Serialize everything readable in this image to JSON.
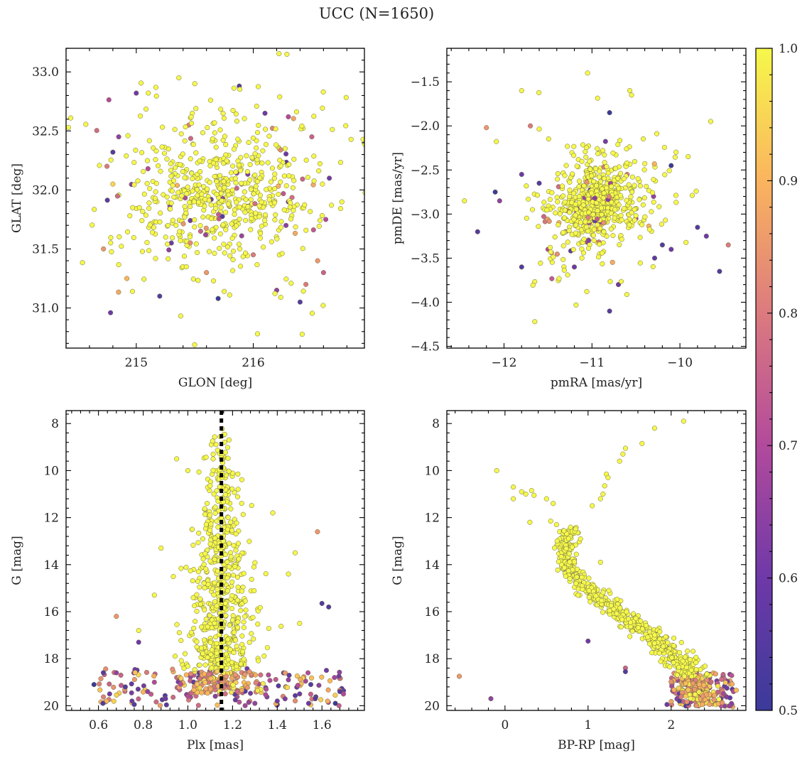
{
  "title": "UCC (N=1650)",
  "colorbar": {
    "range": [
      0.5,
      1.0
    ],
    "ticks": [
      "0.5",
      "0.6",
      "0.7",
      "0.8",
      "0.9",
      "1.0"
    ],
    "colormap": "plasma"
  },
  "chart_data": [
    {
      "type": "scatter",
      "xlabel": "GLON [deg]",
      "ylabel": "GLAT [deg]",
      "xlim": [
        214.4,
        216.95
      ],
      "ylim": [
        30.66,
        33.2
      ],
      "xticks": [
        215,
        216
      ],
      "yticks": [
        31.0,
        31.5,
        32.0,
        32.5,
        33.0
      ],
      "ytick_labels": [
        "31.0",
        "31.5",
        "32.0",
        "32.5",
        "33.0"
      ],
      "cluster": {
        "cx": 215.7,
        "cy": 31.95,
        "sx": 0.35,
        "sy": 0.28,
        "n": 650
      },
      "field_stars": [
        [
          214.78,
          30.96,
          0.6
        ],
        [
          215.2,
          31.1,
          0.55
        ],
        [
          215.7,
          31.08,
          0.5
        ],
        [
          216.4,
          31.05,
          0.55
        ],
        [
          216.6,
          31.3,
          0.75
        ],
        [
          216.55,
          31.4,
          0.85
        ],
        [
          216.45,
          31.2,
          0.8
        ],
        [
          215.0,
          32.82,
          0.6
        ],
        [
          214.8,
          32.32,
          0.55
        ],
        [
          214.85,
          32.45,
          0.65
        ],
        [
          215.88,
          32.88,
          0.55
        ],
        [
          216.1,
          32.65,
          0.6
        ],
        [
          216.5,
          32.45,
          0.75
        ],
        [
          216.3,
          32.62,
          0.7
        ],
        [
          214.75,
          32.2,
          0.8
        ],
        [
          214.72,
          31.5,
          0.85
        ],
        [
          216.65,
          32.1,
          0.6
        ],
        [
          216.62,
          31.75,
          0.7
        ],
        [
          215.55,
          31.65,
          0.75
        ],
        [
          215.3,
          31.55,
          0.6
        ],
        [
          216.0,
          31.45,
          0.8
        ],
        [
          216.2,
          31.15,
          0.65
        ],
        [
          215.1,
          32.18,
          0.7
        ],
        [
          215.45,
          32.55,
          0.8
        ],
        [
          215.9,
          32.05,
          0.75
        ],
        [
          216.3,
          31.9,
          0.6
        ],
        [
          214.92,
          31.25,
          0.9
        ],
        [
          215.5,
          32.9,
          1.0
        ],
        [
          214.8,
          32.05,
          0.95
        ],
        [
          215.6,
          31.3,
          0.85
        ]
      ]
    },
    {
      "type": "scatter",
      "xlabel": "pmRA [mas/yr]",
      "ylabel": "pmDE [mas/yr]",
      "xlim": [
        -12.65,
        -9.25
      ],
      "ylim": [
        -4.52,
        -1.12
      ],
      "xticks": [
        -12,
        -11,
        -10
      ],
      "xtick_labels": [
        "−12",
        "−11",
        "−10"
      ],
      "yticks": [
        -4.5,
        -4.0,
        -3.5,
        -3.0,
        -2.5,
        -2.0,
        -1.5
      ],
      "ytick_labels": [
        "−4.5",
        "−4.0",
        "−3.5",
        "−3.0",
        "−2.5",
        "−2.0",
        "−1.5"
      ],
      "cluster": {
        "cx": -10.95,
        "cy": -2.88,
        "sx": 0.22,
        "sy": 0.22,
        "n": 650
      },
      "field_stars": [
        [
          -12.3,
          -3.2,
          0.55
        ],
        [
          -12.1,
          -2.75,
          0.5
        ],
        [
          -11.8,
          -3.6,
          0.55
        ],
        [
          -10.8,
          -1.85,
          0.5
        ],
        [
          -10.1,
          -2.45,
          0.5
        ],
        [
          -9.8,
          -3.15,
          0.55
        ],
        [
          -9.7,
          -3.25,
          0.6
        ],
        [
          -9.55,
          -3.65,
          0.55
        ],
        [
          -9.45,
          -3.35,
          0.8
        ],
        [
          -10.2,
          -3.35,
          0.55
        ],
        [
          -10.1,
          -3.4,
          0.6
        ],
        [
          -10.7,
          -3.8,
          0.6
        ],
        [
          -10.8,
          -4.1,
          0.55
        ],
        [
          -11.2,
          -3.6,
          0.6
        ],
        [
          -11.5,
          -3.4,
          0.7
        ],
        [
          -11.7,
          -2.0,
          0.8
        ],
        [
          -12.2,
          -2.02,
          0.85
        ],
        [
          -11.8,
          -2.55,
          0.6
        ],
        [
          -11.6,
          -2.65,
          0.55
        ],
        [
          -10.3,
          -2.8,
          0.65
        ],
        [
          -10.5,
          -3.05,
          0.7
        ],
        [
          -11.3,
          -3.2,
          0.75
        ],
        [
          -10.6,
          -2.55,
          0.8
        ],
        [
          -12.05,
          -2.85,
          0.65
        ],
        [
          -11.05,
          -1.4,
          1.0
        ],
        [
          -11.8,
          -1.6,
          1.0
        ],
        [
          -12.45,
          -2.85,
          1.0
        ],
        [
          -11.65,
          -4.22,
          1.0
        ],
        [
          -10.55,
          -1.65,
          1.0
        ],
        [
          -9.65,
          -1.95,
          1.0
        ]
      ]
    },
    {
      "type": "scatter",
      "xlabel": "Plx [mas]",
      "ylabel": "G [mag]",
      "xlim": [
        0.455,
        1.79
      ],
      "ylim": [
        20.2,
        7.45
      ],
      "xticks": [
        0.6,
        0.8,
        1.0,
        1.2,
        1.4,
        1.6
      ],
      "xtick_labels": [
        "0.6",
        "0.8",
        "1.0",
        "1.2",
        "1.4",
        "1.6"
      ],
      "yticks": [
        8,
        10,
        12,
        14,
        16,
        18,
        20
      ],
      "vline": 1.15,
      "cluster": {
        "cx": 1.15,
        "sx": 0.055,
        "n": 720
      },
      "field_stars": [
        [
          0.58,
          19.1,
          0.5
        ],
        [
          0.62,
          19.9,
          0.55
        ],
        [
          0.65,
          19.5,
          0.6
        ],
        [
          0.68,
          18.6,
          0.65
        ],
        [
          0.72,
          19.2,
          0.55
        ],
        [
          0.75,
          19.8,
          0.6
        ],
        [
          0.78,
          17.3,
          0.6
        ],
        [
          0.82,
          19.4,
          0.65
        ],
        [
          0.85,
          19.0,
          0.7
        ],
        [
          0.9,
          19.7,
          0.6
        ],
        [
          0.95,
          18.8,
          0.75
        ],
        [
          1.0,
          19.6,
          0.7
        ],
        [
          1.35,
          19.3,
          0.7
        ],
        [
          1.4,
          19.8,
          0.6
        ],
        [
          1.45,
          18.9,
          0.65
        ],
        [
          1.5,
          19.5,
          0.6
        ],
        [
          1.55,
          19.1,
          0.55
        ],
        [
          1.6,
          15.65,
          0.55
        ],
        [
          1.63,
          15.8,
          0.55
        ],
        [
          1.66,
          19.9,
          0.5
        ],
        [
          1.68,
          19.4,
          0.55
        ],
        [
          1.58,
          12.6,
          0.85
        ],
        [
          0.68,
          16.2,
          0.85
        ],
        [
          1.62,
          18.5,
          0.6
        ],
        [
          0.76,
          19.95,
          0.55
        ],
        [
          1.57,
          19.7,
          0.55
        ],
        [
          0.7,
          18.7,
          0.75
        ],
        [
          1.3,
          19.9,
          0.65
        ]
      ]
    },
    {
      "type": "scatter",
      "xlabel": "BP-RP [mag]",
      "ylabel": "G [mag]",
      "xlim": [
        -0.7,
        2.9
      ],
      "ylim": [
        20.2,
        7.45
      ],
      "xticks": [
        0,
        1,
        2
      ],
      "yticks": [
        8,
        10,
        12,
        14,
        16,
        18,
        20
      ],
      "sequence": [
        [
          0.95,
          11.8
        ],
        [
          0.78,
          12.6
        ],
        [
          0.72,
          13.2
        ],
        [
          0.74,
          13.8
        ],
        [
          0.85,
          14.5
        ],
        [
          1.05,
          15.2
        ],
        [
          1.3,
          15.9
        ],
        [
          1.55,
          16.5
        ],
        [
          1.8,
          17.2
        ],
        [
          2.05,
          17.9
        ],
        [
          2.2,
          18.6
        ],
        [
          2.3,
          19.3
        ],
        [
          2.4,
          19.9
        ]
      ],
      "giants": [
        [
          2.15,
          7.9
        ],
        [
          1.8,
          8.2
        ],
        [
          1.65,
          8.85
        ],
        [
          1.45,
          9.05
        ],
        [
          1.42,
          9.3
        ],
        [
          1.38,
          9.6
        ],
        [
          1.22,
          10.15
        ],
        [
          1.24,
          10.3
        ],
        [
          1.2,
          10.65
        ],
        [
          1.18,
          11.0
        ],
        [
          1.15,
          11.2
        ],
        [
          1.05,
          11.5
        ],
        [
          -0.1,
          10.0
        ],
        [
          0.1,
          10.7
        ],
        [
          0.2,
          10.9
        ],
        [
          0.25,
          11.0
        ],
        [
          0.32,
          10.85
        ],
        [
          0.35,
          11.05
        ],
        [
          0.1,
          11.2
        ],
        [
          0.5,
          11.2
        ],
        [
          0.58,
          11.4
        ],
        [
          0.3,
          12.2
        ],
        [
          0.55,
          12.15
        ],
        [
          0.62,
          12.3
        ],
        [
          1.15,
          13.9
        ],
        [
          0.88,
          15.3
        ],
        [
          0.78,
          14.6
        ],
        [
          1.25,
          15.1
        ]
      ],
      "field_stars": [
        [
          -0.55,
          18.75,
          0.85
        ],
        [
          -0.17,
          19.7,
          0.65
        ],
        [
          1.45,
          18.4,
          0.75
        ],
        [
          1.45,
          18.55,
          0.55
        ],
        [
          1.0,
          17.25,
          0.6
        ],
        [
          2.2,
          19.9,
          0.55
        ],
        [
          2.75,
          19.4,
          0.7
        ],
        [
          2.6,
          19.7,
          0.6
        ],
        [
          2.1,
          19.8,
          0.55
        ],
        [
          1.95,
          19.95,
          0.6
        ]
      ]
    }
  ]
}
